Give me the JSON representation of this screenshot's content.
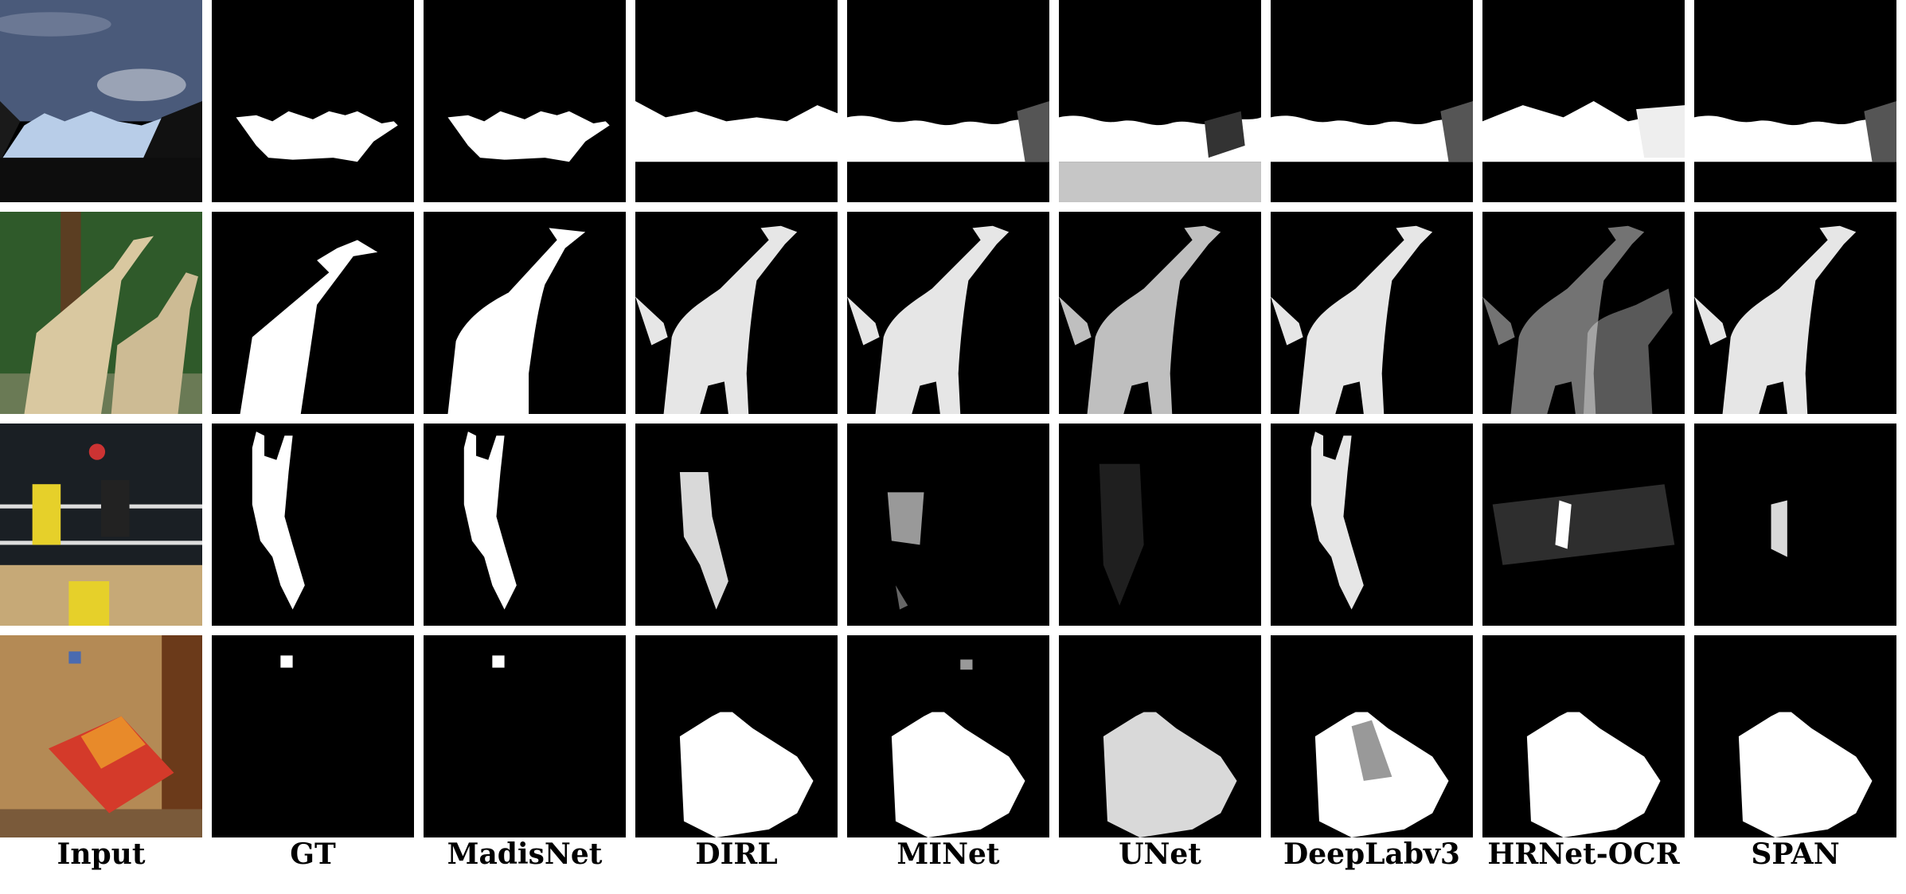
{
  "figure": {
    "columns": [
      "Input",
      "GT",
      "MadisNet",
      "DIRL",
      "MINet",
      "UNet",
      "DeepLabv3",
      "HRNet-OCR",
      "SPAN"
    ],
    "rows": [
      {
        "subject": "mountain-landscape"
      },
      {
        "subject": "giraffes"
      },
      {
        "subject": "volleyball-players"
      },
      {
        "subject": "bedroom"
      }
    ],
    "colors": {
      "background": "#000000",
      "mask": "#ffffff",
      "separator": "#ffffff"
    }
  }
}
